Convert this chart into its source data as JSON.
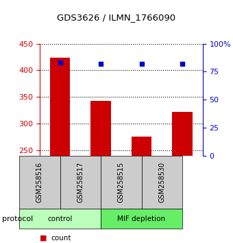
{
  "title": "GDS3626 / ILMN_1766090",
  "samples": [
    "GSM258516",
    "GSM258517",
    "GSM258515",
    "GSM258530"
  ],
  "counts": [
    424,
    343,
    276,
    322
  ],
  "percentile_ranks": [
    83,
    82,
    82,
    82
  ],
  "groups": [
    {
      "label": "control",
      "samples": [
        0,
        1
      ]
    },
    {
      "label": "MIF depletion",
      "samples": [
        2,
        3
      ]
    }
  ],
  "bar_color": "#cc0000",
  "dot_color": "#0000cc",
  "ylim_left": [
    240,
    450
  ],
  "ylim_right": [
    0,
    100
  ],
  "yticks_left": [
    250,
    300,
    350,
    400,
    450
  ],
  "yticks_right": [
    0,
    25,
    50,
    75,
    100
  ],
  "left_axis_color": "#cc0000",
  "right_axis_color": "#0000cc",
  "bg_color": "#ffffff",
  "plot_bg_color": "#ffffff",
  "bar_bottom": 240,
  "label_box_color": "#cccccc",
  "protocol_label": "protocol",
  "control_color": "#bbffbb",
  "mif_color": "#66ee66"
}
